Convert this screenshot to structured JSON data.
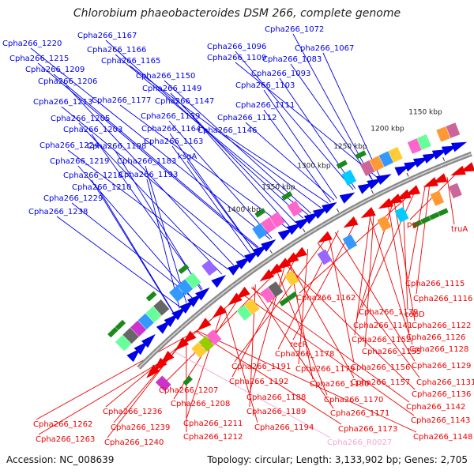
{
  "title": "Chlorobium phaeobacteroides DSM 266, complete genome",
  "accession": "Accession: NC_008639",
  "topology": "Topology: circular; Length: 3,133,902 bp; Genes: 2,705",
  "colors": {
    "plus": "#0000e6",
    "minus": "#ee0000",
    "rna": "#f4a6d7",
    "backbone": "#8a8a8a",
    "tick": "#1a8a1a"
  },
  "kbp_ticks": [
    "1150 kbp",
    "1200 kbp",
    "1250 kbp",
    "1300 kbp",
    "1350 kbp",
    "1400 kbp"
  ],
  "top_labels": [
    "Cpha266_1072",
    "Cpha266_1067",
    "Cpha266_1096",
    "Cpha266_1083",
    "Cpha266_1109",
    "Cpha266_1093",
    "Cpha266_1103",
    "Cpha266_1111",
    "Cpha266_1112",
    "Cpha266_1146",
    "Cpha266_1167",
    "Cpha266_1166",
    "Cpha266_1165",
    "Cpha266_1150",
    "Cpha266_1149",
    "Cpha266_1147",
    "Cpha266_1177",
    "Cpha266_1159",
    "Cpha266_1164",
    "Cpha266_1163",
    "ksgA",
    "Cpha266_1220",
    "Cpha266_1215",
    "Cpha266_1209",
    "Cpha266_1206",
    "Cpha266_1213",
    "Cpha266_1205",
    "Cpha266_1203",
    "Cpha266_1224",
    "Cpha266_1198",
    "Cpha266_1219",
    "Cpha266_1183",
    "Cpha266_1218",
    "Cpha266_1193",
    "Cpha266_1210",
    "Cpha266_1229",
    "Cpha266_1238"
  ],
  "bottom_labels": [
    "pgi",
    "truA",
    "Cpha266_1115",
    "Cpha266_1116",
    "Cpha266_1162",
    "Cpha266_1139",
    "cobD",
    "Cpha266_1141",
    "Cpha266_1122",
    "Cpha266_1126",
    "Cpha266_1152",
    "Cpha266_1155",
    "Cpha266_1128",
    "recR",
    "Cpha266_1178",
    "Cpha266_1156",
    "Cpha266_1129",
    "Cpha266_1191",
    "Cpha266_1179",
    "Cpha266_1131",
    "Cpha266_1192",
    "Cpha266_1180",
    "Cpha266_1157",
    "Cpha266_1136",
    "Cpha266_1207",
    "Cpha266_1188",
    "Cpha266_1170",
    "Cpha266_1142",
    "Cpha266_1208",
    "Cpha266_1189",
    "Cpha266_1171",
    "Cpha266_1143",
    "Cpha266_1236",
    "Cpha266_1211",
    "Cpha266_1194",
    "Cpha266_1173",
    "Cpha266_1148",
    "Cpha266_1262",
    "Cpha266_1239",
    "Cpha266_1212",
    "Cpha266_R0027",
    "Cpha266_1263",
    "Cpha266_1240"
  ]
}
